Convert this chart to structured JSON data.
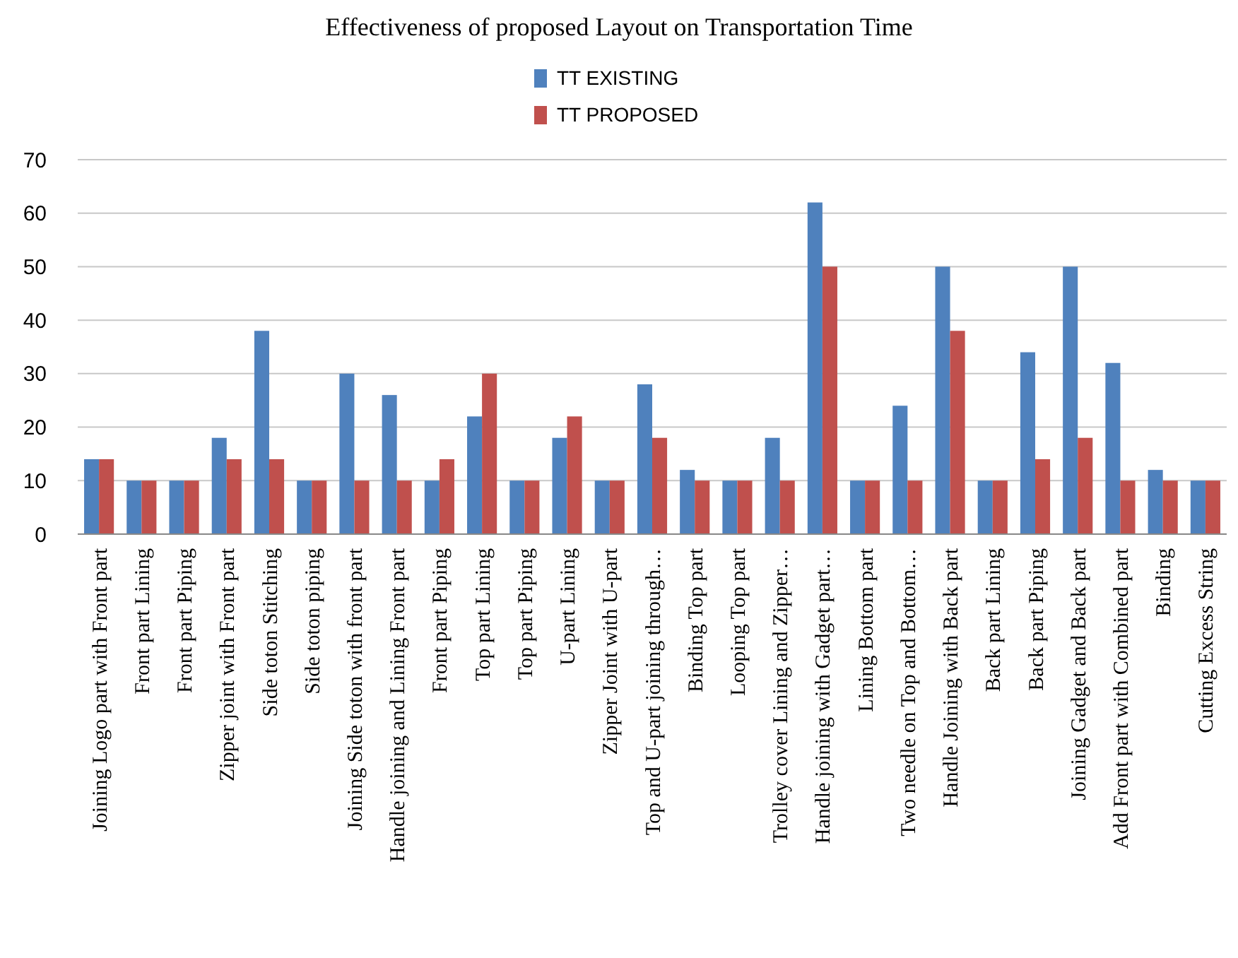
{
  "chart_data": {
    "type": "bar",
    "title": "Effectiveness of proposed Layout on Transportation Time",
    "categories": [
      "Joining Logo part with Front part",
      "Front part Lining",
      "Front part Piping",
      "Zipper joint with Front part",
      "Side toton Stitching",
      "Side toton piping",
      "Joining Side toton with front part",
      "Handle joining and Lining Front part",
      "Front part Piping",
      "Top part Lining",
      "Top  part Piping",
      "U-part Lining",
      "Zipper Joint with U-part",
      "Top and U-part joining through…",
      "Binding Top part",
      "Looping Top part",
      "Trolley cover Lining and Zipper…",
      "Handle joining with Gadget part…",
      "Lining Bottom part",
      "Two needle on Top and Bottom…",
      "Handle Joining with Back part",
      "Back part Lining",
      "Back part Piping",
      "Joining Gadget and Back part",
      "Add Front part with Combined part",
      "Binding",
      "Cutting Excess String"
    ],
    "series": [
      {
        "name": "TT  EXISTING",
        "color": "#4f81bd",
        "values": [
          14,
          10,
          10,
          18,
          38,
          10,
          30,
          26,
          10,
          22,
          10,
          18,
          10,
          28,
          12,
          10,
          18,
          62,
          10,
          24,
          50,
          10,
          34,
          50,
          32,
          12,
          10
        ]
      },
      {
        "name": "TT  PROPOSED",
        "color": "#c0504d",
        "values": [
          14,
          10,
          10,
          14,
          14,
          10,
          10,
          10,
          14,
          30,
          10,
          22,
          10,
          18,
          10,
          10,
          10,
          50,
          10,
          10,
          38,
          10,
          14,
          18,
          10,
          10,
          10
        ]
      }
    ],
    "ylim": [
      0,
      70
    ],
    "yticks": [
      0,
      10,
      20,
      30,
      40,
      50,
      60,
      70
    ],
    "grid": "y",
    "legend": "top"
  }
}
